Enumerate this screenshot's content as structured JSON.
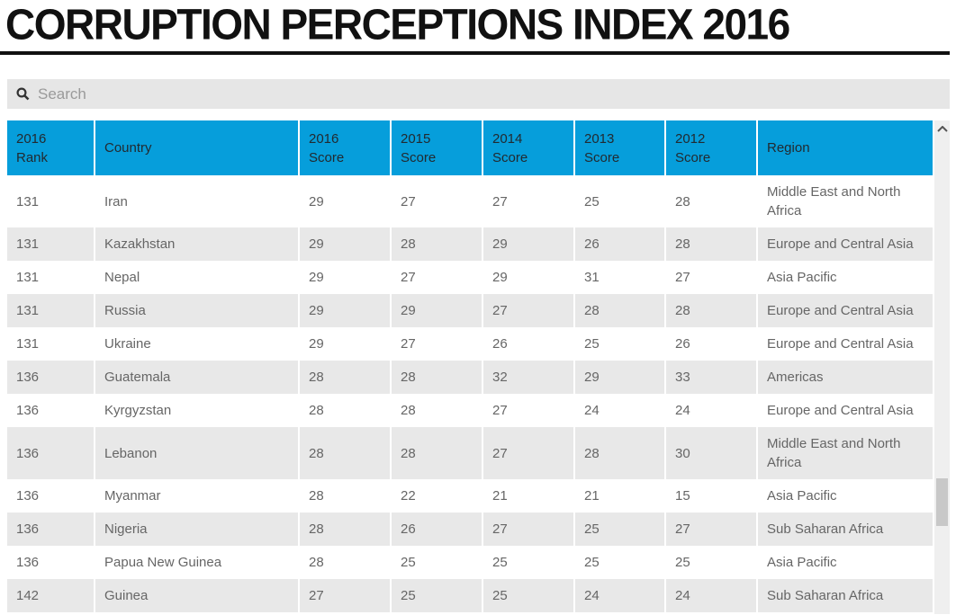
{
  "page": {
    "title": "CORRUPTION PERCEPTIONS INDEX 2016"
  },
  "search": {
    "placeholder": "Search",
    "icon": "magnifier"
  },
  "table": {
    "columns": [
      "2016\nRank",
      "Country",
      "2016\nScore",
      "2015\nScore",
      "2014\nScore",
      "2013\nScore",
      "2012\nScore",
      "Region"
    ],
    "fields": [
      "rank",
      "country",
      "score2016",
      "score2015",
      "score2014",
      "score2013",
      "score2012",
      "region"
    ],
    "rows": [
      {
        "rank": "131",
        "country": "Iran",
        "score2016": "29",
        "score2015": "27",
        "score2014": "27",
        "score2013": "25",
        "score2012": "28",
        "region": "Middle East and North Africa"
      },
      {
        "rank": "131",
        "country": "Kazakhstan",
        "score2016": "29",
        "score2015": "28",
        "score2014": "29",
        "score2013": "26",
        "score2012": "28",
        "region": "Europe and Central Asia"
      },
      {
        "rank": "131",
        "country": "Nepal",
        "score2016": "29",
        "score2015": "27",
        "score2014": "29",
        "score2013": "31",
        "score2012": "27",
        "region": "Asia Pacific"
      },
      {
        "rank": "131",
        "country": "Russia",
        "score2016": "29",
        "score2015": "29",
        "score2014": "27",
        "score2013": "28",
        "score2012": "28",
        "region": "Europe and Central Asia"
      },
      {
        "rank": "131",
        "country": "Ukraine",
        "score2016": "29",
        "score2015": "27",
        "score2014": "26",
        "score2013": "25",
        "score2012": "26",
        "region": "Europe and Central Asia"
      },
      {
        "rank": "136",
        "country": "Guatemala",
        "score2016": "28",
        "score2015": "28",
        "score2014": "32",
        "score2013": "29",
        "score2012": "33",
        "region": "Americas"
      },
      {
        "rank": "136",
        "country": "Kyrgyzstan",
        "score2016": "28",
        "score2015": "28",
        "score2014": "27",
        "score2013": "24",
        "score2012": "24",
        "region": "Europe and Central Asia"
      },
      {
        "rank": "136",
        "country": "Lebanon",
        "score2016": "28",
        "score2015": "28",
        "score2014": "27",
        "score2013": "28",
        "score2012": "30",
        "region": "Middle East and North Africa"
      },
      {
        "rank": "136",
        "country": "Myanmar",
        "score2016": "28",
        "score2015": "22",
        "score2014": "21",
        "score2013": "21",
        "score2012": "15",
        "region": "Asia Pacific"
      },
      {
        "rank": "136",
        "country": "Nigeria",
        "score2016": "28",
        "score2015": "26",
        "score2014": "27",
        "score2013": "25",
        "score2012": "27",
        "region": "Sub Saharan Africa"
      },
      {
        "rank": "136",
        "country": "Papua New Guinea",
        "score2016": "28",
        "score2015": "25",
        "score2014": "25",
        "score2013": "25",
        "score2012": "25",
        "region": "Asia Pacific"
      },
      {
        "rank": "142",
        "country": "Guinea",
        "score2016": "27",
        "score2015": "25",
        "score2014": "25",
        "score2013": "24",
        "score2012": "24",
        "region": "Sub Saharan Africa"
      }
    ]
  },
  "scrollbar": {
    "up_icon": "chevron-up"
  },
  "colors": {
    "header_bg": "#069edb",
    "header_text": "#222a30",
    "row_alt_bg": "#e8e8e8",
    "body_text": "#666666",
    "title_color": "#111111",
    "search_bg": "#e6e6e6",
    "placeholder_text": "#9a9a9a",
    "scroll_track": "#efefef",
    "scroll_thumb": "#c8c8c8"
  }
}
